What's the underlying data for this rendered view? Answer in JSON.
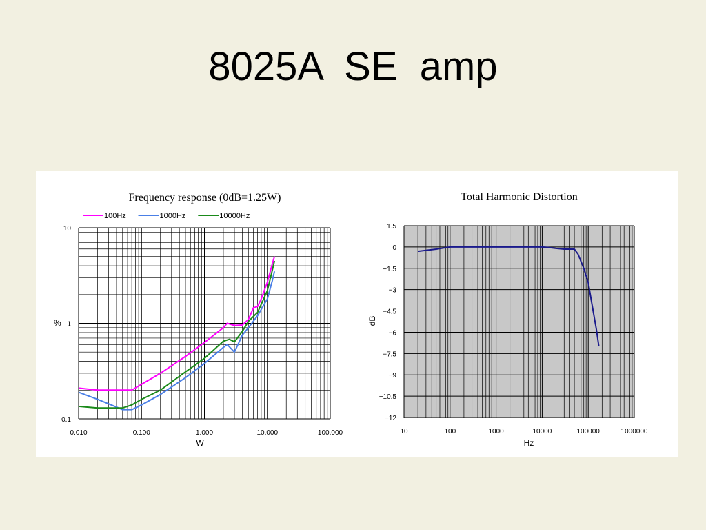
{
  "slide": {
    "title": "8025A  SE  amp"
  },
  "chart_data": [
    {
      "type": "line",
      "title": "Frequency response (0dB=1.25W)",
      "xlabel": "W",
      "ylabel": "%",
      "xscale": "log",
      "yscale": "log",
      "xlim": [
        0.01,
        100
      ],
      "ylim": [
        0.1,
        10
      ],
      "x_ticks": [
        "0.010",
        "0.100",
        "1.000",
        "10.000",
        "100.000"
      ],
      "y_ticks": [
        "10",
        "1",
        "0.1"
      ],
      "grid": true,
      "legend": "top",
      "series": [
        {
          "name": "100Hz",
          "color": "#ff00ff",
          "x": [
            0.01,
            0.02,
            0.04,
            0.07,
            0.1,
            0.2,
            0.5,
            1,
            2,
            2.3,
            3,
            4,
            5,
            6,
            7,
            8,
            10,
            12,
            13
          ],
          "y": [
            0.21,
            0.2,
            0.2,
            0.2,
            0.23,
            0.3,
            0.45,
            0.63,
            0.9,
            1.0,
            0.95,
            0.96,
            1.1,
            1.45,
            1.5,
            1.8,
            2.7,
            4.2,
            5.0
          ]
        },
        {
          "name": "1000Hz",
          "color": "#4a7fe6",
          "x": [
            0.01,
            0.02,
            0.05,
            0.07,
            0.1,
            0.2,
            0.5,
            1,
            2,
            2.3,
            3,
            4,
            5,
            7,
            10,
            12,
            13
          ],
          "y": [
            0.19,
            0.16,
            0.125,
            0.125,
            0.14,
            0.18,
            0.27,
            0.38,
            0.56,
            0.6,
            0.5,
            0.75,
            0.9,
            1.2,
            1.8,
            2.8,
            3.5
          ]
        },
        {
          "name": "10000Hz",
          "color": "#1a8a1a",
          "x": [
            0.01,
            0.02,
            0.05,
            0.07,
            0.1,
            0.2,
            0.5,
            1,
            2,
            2.5,
            3,
            4,
            5,
            7,
            10,
            12,
            13
          ],
          "y": [
            0.135,
            0.13,
            0.13,
            0.14,
            0.16,
            0.2,
            0.31,
            0.43,
            0.65,
            0.68,
            0.64,
            0.82,
            1.05,
            1.3,
            2.2,
            3.6,
            4.5
          ]
        }
      ]
    },
    {
      "type": "line",
      "title": "Total Harmonic Distortion",
      "xlabel": "Hz",
      "ylabel": "dB",
      "xscale": "log",
      "xlim": [
        10,
        1000000
      ],
      "ylim": [
        -12,
        1.5
      ],
      "x_ticks": [
        "10",
        "100",
        "1000",
        "10000",
        "100000",
        "1000000"
      ],
      "y_ticks": [
        "1.5",
        "0",
        "−1.5",
        "−3",
        "−4.5",
        "−6",
        "−7.5",
        "−9",
        "−10.5",
        "−12"
      ],
      "grid": true,
      "background": "#c8c8c8",
      "series": [
        {
          "color": "#1a1a8c",
          "x": [
            20,
            50,
            100,
            1000,
            10000,
            15000,
            20000,
            30000,
            50000,
            60000,
            80000,
            100000,
            120000,
            150000,
            170000
          ],
          "y": [
            -0.3,
            -0.15,
            0,
            0,
            0,
            -0.05,
            -0.1,
            -0.15,
            -0.15,
            -0.5,
            -1.5,
            -2.5,
            -4.0,
            -5.8,
            -7.0
          ]
        }
      ]
    }
  ]
}
